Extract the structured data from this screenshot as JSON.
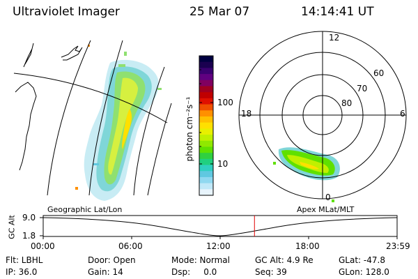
{
  "header": {
    "title": "Ultraviolet Imager",
    "date": "25 Mar 07",
    "time": "14:14:41 UT"
  },
  "colorbar": {
    "unit_label": "photon cm⁻²s⁻¹",
    "ticks": [
      "100",
      "10"
    ],
    "colors": [
      "#000040",
      "#1a0050",
      "#3a0070",
      "#600080",
      "#800060",
      "#a00020",
      "#c00000",
      "#e01000",
      "#f05000",
      "#ff9000",
      "#ffc000",
      "#ffe000",
      "#e8f000",
      "#c0f000",
      "#90e800",
      "#60e000",
      "#30d040",
      "#20d080",
      "#30d0c0",
      "#60c8e0",
      "#90d8f0",
      "#c0e8f8",
      "#e8f4fc"
    ]
  },
  "geo_panel": {
    "label": "Geographic Lat/Lon"
  },
  "polar_panel": {
    "label": "Apex MLat/MLT",
    "hour_labels": {
      "top": "12",
      "left": "18",
      "right": "6",
      "bottom": "0"
    },
    "lat_labels": [
      "60",
      "70",
      "80"
    ]
  },
  "altitude_plot": {
    "y_label": "GC Alt",
    "y_ticks": [
      "9.0",
      "1.8"
    ],
    "x_ticks": [
      "00:00",
      "06:00",
      "12:00",
      "18:00",
      "23:59"
    ],
    "current_time_fraction": 0.597,
    "marker_color": "#e00000"
  },
  "info": {
    "flt": "Flt: LBHL",
    "ip": "IP: 36.0",
    "door": "Door: Open",
    "gain": "Gain: 14",
    "mode": "Mode: Normal",
    "dsp": "Dsp:     0.0",
    "gc_alt": "GC Alt: 4.9 Re",
    "seq": "Seq: 39",
    "glat": "GLat: -47.8",
    "glon": "GLon: 128.0"
  }
}
